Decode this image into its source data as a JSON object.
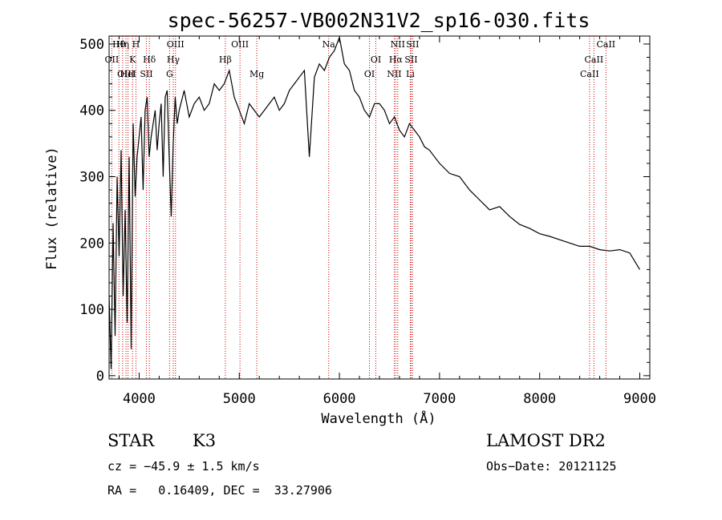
{
  "chart_data": {
    "type": "line",
    "title": "spec-56257-VB002N31V2_sp16-030.fits",
    "xlabel": "Wavelength (Å)",
    "ylabel": "Flux (relative)",
    "xlim": [
      3700,
      9100
    ],
    "ylim": [
      -5,
      512
    ],
    "xticks": [
      4000,
      5000,
      6000,
      7000,
      8000,
      9000
    ],
    "yticks": [
      0,
      100,
      200,
      300,
      400,
      500
    ],
    "grid": false,
    "legend": "none",
    "colors": {
      "spectrum": "#000000",
      "lines": "#cc0000",
      "axes": "#000000"
    },
    "series": [
      {
        "x": [
          3700,
          3720,
          3740,
          3760,
          3780,
          3800,
          3820,
          3840,
          3860,
          3880,
          3900,
          3920,
          3940,
          3960,
          3980,
          4000,
          4020,
          4040,
          4060,
          4080,
          4100,
          4120,
          4140,
          4160,
          4180,
          4200,
          4220,
          4240,
          4260,
          4280,
          4300,
          4320,
          4340,
          4360,
          4380,
          4400,
          4450,
          4500,
          4550,
          4600,
          4650,
          4700,
          4750,
          4800,
          4850,
          4900,
          4950,
          5000,
          5050,
          5100,
          5150,
          5200,
          5250,
          5300,
          5350,
          5400,
          5450,
          5500,
          5550,
          5600,
          5650,
          5700,
          5750,
          5800,
          5850,
          5900,
          5950,
          6000,
          6050,
          6100,
          6150,
          6200,
          6250,
          6300,
          6350,
          6400,
          6450,
          6500,
          6550,
          6600,
          6650,
          6700,
          6750,
          6800,
          6850,
          6900,
          6950,
          7000,
          7100,
          7200,
          7300,
          7400,
          7500,
          7600,
          7700,
          7800,
          7900,
          8000,
          8100,
          8200,
          8300,
          8400,
          8500,
          8600,
          8700,
          8800,
          8900,
          9000
        ],
        "y": [
          120,
          10,
          230,
          60,
          300,
          180,
          340,
          120,
          250,
          80,
          330,
          40,
          380,
          270,
          330,
          360,
          390,
          280,
          400,
          420,
          330,
          360,
          380,
          400,
          340,
          380,
          410,
          300,
          420,
          430,
          330,
          240,
          350,
          420,
          380,
          400,
          430,
          390,
          410,
          420,
          400,
          410,
          440,
          430,
          440,
          460,
          420,
          400,
          380,
          410,
          400,
          390,
          400,
          410,
          420,
          400,
          410,
          430,
          440,
          450,
          460,
          330,
          450,
          470,
          460,
          480,
          490,
          510,
          470,
          460,
          430,
          420,
          400,
          390,
          410,
          410,
          400,
          380,
          390,
          370,
          360,
          380,
          370,
          360,
          345,
          340,
          330,
          320,
          305,
          300,
          280,
          265,
          250,
          255,
          240,
          228,
          222,
          214,
          210,
          205,
          200,
          195,
          195,
          190,
          188,
          190,
          185,
          160
        ]
      }
    ],
    "emission_lines": [
      {
        "label": "Hθ",
        "x": 3798
      },
      {
        "label": "OII",
        "x": 3727
      },
      {
        "label": "OIII",
        "x": 3869
      },
      {
        "label": "Hη",
        "x": 3835
      },
      {
        "label": "K",
        "x": 3934
      },
      {
        "label": "HeI",
        "x": 3889
      },
      {
        "label": "H",
        "x": 3968
      },
      {
        "label": "Hδ",
        "x": 4102
      },
      {
        "label": "SII",
        "x": 4072
      },
      {
        "label": "OIII",
        "x": 4363
      },
      {
        "label": "Hγ",
        "x": 4341
      },
      {
        "label": "G",
        "x": 4304
      },
      {
        "label": "OIII",
        "x": 5007
      },
      {
        "label": "Hβ",
        "x": 4861
      },
      {
        "label": "Mg",
        "x": 5175
      },
      {
        "label": "Na",
        "x": 5893
      },
      {
        "label": "OI",
        "x": 6364
      },
      {
        "label": "OI",
        "x": 6300
      },
      {
        "label": "NII",
        "x": 6583
      },
      {
        "label": "Hα",
        "x": 6563
      },
      {
        "label": "NII",
        "x": 6548
      },
      {
        "label": "SII",
        "x": 6731
      },
      {
        "label": "SII",
        "x": 6716
      },
      {
        "label": "Li",
        "x": 6708
      },
      {
        "label": "CaII",
        "x": 8662
      },
      {
        "label": "CaII",
        "x": 8542
      },
      {
        "label": "CaII",
        "x": 8498
      }
    ]
  },
  "info": {
    "class": "STAR",
    "subclass": "K3",
    "survey": "LAMOST DR2",
    "cz": "cz = −45.9 ± 1.5 km/s",
    "obsdate": "Obs−Date: 20121125",
    "radec": "RA =   0.16409, DEC =  33.27906"
  }
}
